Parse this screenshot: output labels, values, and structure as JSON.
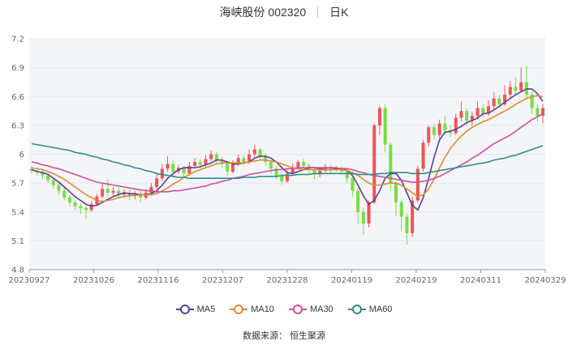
{
  "header": {
    "stock": "海峡股份 002320",
    "period": "日K"
  },
  "source": "数据来源：  恒生聚源",
  "chart_data": {
    "type": "candlestick",
    "ylim": [
      4.8,
      7.2
    ],
    "yticks": [
      "7.2",
      "6.9",
      "6.6",
      "6.3",
      "6",
      "5.7",
      "5.4",
      "5.1",
      "4.8"
    ],
    "xticks": [
      "20230927",
      "20231026",
      "20231116",
      "20231207",
      "20231228",
      "20240119",
      "20240219",
      "20240311",
      "20240329"
    ],
    "grid": "horizontal",
    "legend_position": "bottom-center",
    "colors": {
      "up": "#ee5555",
      "down": "#77dd44",
      "MA5": "#5b3f98",
      "MA10": "#dd8a2e",
      "MA30": "#cc4f9a",
      "MA60": "#2f8c88"
    },
    "candles": [
      [
        5.85,
        5.83,
        5.88,
        5.8
      ],
      [
        5.83,
        5.82,
        5.86,
        5.78
      ],
      [
        5.82,
        5.78,
        5.85,
        5.74
      ],
      [
        5.78,
        5.73,
        5.8,
        5.7
      ],
      [
        5.73,
        5.68,
        5.76,
        5.64
      ],
      [
        5.68,
        5.62,
        5.7,
        5.58
      ],
      [
        5.62,
        5.55,
        5.66,
        5.52
      ],
      [
        5.55,
        5.5,
        5.58,
        5.46
      ],
      [
        5.5,
        5.46,
        5.53,
        5.42
      ],
      [
        5.46,
        5.44,
        5.49,
        5.38
      ],
      [
        5.44,
        5.42,
        5.47,
        5.33
      ],
      [
        5.42,
        5.48,
        5.51,
        5.4
      ],
      [
        5.48,
        5.56,
        5.59,
        5.46
      ],
      [
        5.56,
        5.64,
        5.7,
        5.54
      ],
      [
        5.64,
        5.6,
        5.74,
        5.56
      ],
      [
        5.6,
        5.62,
        5.66,
        5.57
      ],
      [
        5.62,
        5.58,
        5.65,
        5.54
      ],
      [
        5.58,
        5.6,
        5.64,
        5.55
      ],
      [
        5.6,
        5.57,
        5.63,
        5.52
      ],
      [
        5.57,
        5.59,
        5.62,
        5.53
      ],
      [
        5.59,
        5.55,
        5.62,
        5.5
      ],
      [
        5.55,
        5.6,
        5.64,
        5.53
      ],
      [
        5.6,
        5.66,
        5.7,
        5.58
      ],
      [
        5.66,
        5.75,
        5.8,
        5.64
      ],
      [
        5.75,
        5.85,
        5.9,
        5.72
      ],
      [
        5.85,
        5.9,
        5.98,
        5.82
      ],
      [
        5.9,
        5.82,
        5.94,
        5.78
      ],
      [
        5.82,
        5.86,
        5.89,
        5.8
      ],
      [
        5.86,
        5.8,
        5.88,
        5.76
      ],
      [
        5.8,
        5.88,
        5.92,
        5.78
      ],
      [
        5.88,
        5.92,
        5.96,
        5.86
      ],
      [
        5.92,
        5.89,
        5.95,
        5.85
      ],
      [
        5.89,
        5.95,
        5.99,
        5.87
      ],
      [
        5.95,
        6.0,
        6.04,
        5.93
      ],
      [
        6.0,
        5.94,
        6.02,
        5.9
      ],
      [
        5.94,
        5.9,
        5.97,
        5.86
      ],
      [
        5.9,
        5.82,
        5.93,
        5.78
      ],
      [
        5.82,
        5.9,
        5.94,
        5.8
      ],
      [
        5.9,
        5.96,
        6.0,
        5.88
      ],
      [
        5.96,
        5.92,
        5.99,
        5.89
      ],
      [
        5.92,
        6.0,
        6.05,
        5.9
      ],
      [
        6.0,
        6.05,
        6.1,
        5.97
      ],
      [
        6.05,
        5.98,
        6.07,
        5.94
      ],
      [
        5.98,
        5.92,
        6.01,
        5.88
      ],
      [
        5.92,
        5.85,
        5.94,
        5.8
      ],
      [
        5.85,
        5.78,
        5.88,
        5.74
      ],
      [
        5.78,
        5.72,
        5.82,
        5.68
      ],
      [
        5.72,
        5.8,
        5.84,
        5.7
      ],
      [
        5.8,
        5.86,
        5.9,
        5.78
      ],
      [
        5.86,
        5.92,
        5.94,
        5.84
      ],
      [
        5.92,
        5.88,
        5.95,
        5.85
      ],
      [
        5.88,
        5.84,
        5.91,
        5.8
      ],
      [
        5.84,
        5.79,
        5.86,
        5.74
      ],
      [
        5.79,
        5.83,
        5.87,
        5.76
      ],
      [
        5.83,
        5.87,
        5.9,
        5.81
      ],
      [
        5.87,
        5.84,
        5.89,
        5.79
      ],
      [
        5.84,
        5.86,
        5.88,
        5.82
      ],
      [
        5.86,
        5.82,
        5.88,
        5.8
      ],
      [
        5.82,
        5.75,
        5.84,
        5.7
      ],
      [
        5.75,
        5.62,
        5.78,
        5.56
      ],
      [
        5.62,
        5.4,
        5.65,
        5.28
      ],
      [
        5.4,
        5.28,
        5.44,
        5.16
      ],
      [
        5.28,
        5.5,
        5.52,
        5.24
      ],
      [
        5.5,
        6.3,
        6.32,
        5.48
      ],
      [
        6.3,
        6.48,
        6.5,
        6.2
      ],
      [
        6.48,
        6.1,
        6.52,
        6.02
      ],
      [
        6.1,
        5.7,
        6.12,
        5.62
      ],
      [
        5.7,
        5.5,
        5.72,
        5.36
      ],
      [
        5.5,
        5.35,
        5.53,
        5.2
      ],
      [
        5.35,
        5.18,
        5.38,
        5.06
      ],
      [
        5.18,
        5.52,
        5.56,
        5.14
      ],
      [
        5.52,
        5.85,
        5.88,
        5.5
      ],
      [
        5.85,
        6.12,
        6.15,
        5.82
      ],
      [
        6.12,
        6.28,
        6.3,
        6.08
      ],
      [
        6.28,
        6.2,
        6.32,
        6.15
      ],
      [
        6.2,
        6.32,
        6.36,
        6.16
      ],
      [
        6.32,
        6.25,
        6.4,
        6.2
      ],
      [
        6.25,
        6.22,
        6.3,
        6.18
      ],
      [
        6.22,
        6.38,
        6.42,
        6.2
      ],
      [
        6.38,
        6.45,
        6.55,
        6.34
      ],
      [
        6.45,
        6.35,
        6.48,
        6.3
      ],
      [
        6.35,
        6.4,
        6.44,
        6.3
      ],
      [
        6.4,
        6.48,
        6.55,
        6.36
      ],
      [
        6.48,
        6.42,
        6.52,
        6.38
      ],
      [
        6.42,
        6.5,
        6.56,
        6.4
      ],
      [
        6.5,
        6.58,
        6.65,
        6.46
      ],
      [
        6.58,
        6.52,
        6.62,
        6.48
      ],
      [
        6.52,
        6.62,
        6.72,
        6.5
      ],
      [
        6.62,
        6.7,
        6.76,
        6.58
      ],
      [
        6.7,
        6.66,
        6.8,
        6.62
      ],
      [
        6.66,
        6.75,
        6.9,
        6.64
      ],
      [
        6.75,
        6.62,
        6.92,
        6.58
      ],
      [
        6.62,
        6.48,
        6.66,
        6.42
      ],
      [
        6.48,
        6.4,
        6.52,
        6.34
      ],
      [
        6.4,
        6.48,
        6.52,
        6.32
      ]
    ],
    "series": [
      {
        "name": "MA5",
        "values": [
          5.84,
          5.82,
          5.81,
          5.79,
          5.75,
          5.71,
          5.66,
          5.61,
          5.56,
          5.52,
          5.48,
          5.46,
          5.47,
          5.5,
          5.53,
          5.56,
          5.58,
          5.6,
          5.59,
          5.59,
          5.58,
          5.58,
          5.59,
          5.62,
          5.68,
          5.75,
          5.8,
          5.84,
          5.86,
          5.86,
          5.86,
          5.87,
          5.89,
          5.91,
          5.94,
          5.94,
          5.92,
          5.9,
          5.9,
          5.91,
          5.92,
          5.96,
          5.98,
          5.98,
          5.96,
          5.92,
          5.86,
          5.81,
          5.8,
          5.82,
          5.84,
          5.86,
          5.86,
          5.85,
          5.84,
          5.84,
          5.85,
          5.85,
          5.83,
          5.78,
          5.68,
          5.57,
          5.48,
          5.52,
          5.62,
          5.75,
          5.8,
          5.8,
          5.73,
          5.6,
          5.47,
          5.42,
          5.55,
          5.75,
          5.97,
          6.15,
          6.23,
          6.24,
          6.26,
          6.29,
          6.33,
          6.35,
          6.38,
          6.42,
          6.43,
          6.46,
          6.5,
          6.54,
          6.58,
          6.62,
          6.65,
          6.68,
          6.68,
          6.63,
          6.55
        ]
      },
      {
        "name": "MA10",
        "values": [
          5.86,
          5.85,
          5.84,
          5.82,
          5.8,
          5.77,
          5.74,
          5.7,
          5.66,
          5.62,
          5.58,
          5.55,
          5.52,
          5.51,
          5.52,
          5.53,
          5.55,
          5.56,
          5.57,
          5.57,
          5.58,
          5.58,
          5.58,
          5.59,
          5.62,
          5.65,
          5.69,
          5.72,
          5.76,
          5.79,
          5.82,
          5.84,
          5.86,
          5.88,
          5.9,
          5.91,
          5.91,
          5.91,
          5.91,
          5.91,
          5.92,
          5.93,
          5.94,
          5.94,
          5.93,
          5.92,
          5.9,
          5.88,
          5.86,
          5.85,
          5.84,
          5.84,
          5.84,
          5.84,
          5.84,
          5.84,
          5.84,
          5.84,
          5.83,
          5.81,
          5.78,
          5.74,
          5.7,
          5.68,
          5.68,
          5.69,
          5.7,
          5.7,
          5.68,
          5.64,
          5.6,
          5.56,
          5.58,
          5.64,
          5.74,
          5.86,
          5.97,
          6.06,
          6.13,
          6.19,
          6.24,
          6.28,
          6.31,
          6.34,
          6.36,
          6.39,
          6.42,
          6.45,
          6.48,
          6.52,
          6.55,
          6.58,
          6.6,
          6.61,
          6.6
        ]
      },
      {
        "name": "MA30",
        "values": [
          5.92,
          5.91,
          5.89,
          5.88,
          5.86,
          5.85,
          5.83,
          5.81,
          5.79,
          5.77,
          5.75,
          5.73,
          5.71,
          5.7,
          5.69,
          5.68,
          5.67,
          5.66,
          5.65,
          5.64,
          5.63,
          5.62,
          5.62,
          5.61,
          5.61,
          5.61,
          5.62,
          5.62,
          5.63,
          5.64,
          5.65,
          5.66,
          5.67,
          5.69,
          5.7,
          5.72,
          5.73,
          5.75,
          5.76,
          5.77,
          5.79,
          5.8,
          5.81,
          5.82,
          5.83,
          5.84,
          5.84,
          5.85,
          5.85,
          5.86,
          5.86,
          5.86,
          5.86,
          5.86,
          5.86,
          5.86,
          5.86,
          5.85,
          5.85,
          5.84,
          5.82,
          5.81,
          5.79,
          5.78,
          5.77,
          5.76,
          5.75,
          5.74,
          5.73,
          5.72,
          5.71,
          5.71,
          5.72,
          5.73,
          5.75,
          5.77,
          5.8,
          5.83,
          5.86,
          5.89,
          5.92,
          5.96,
          5.99,
          6.03,
          6.07,
          6.11,
          6.14,
          6.17,
          6.2,
          6.24,
          6.28,
          6.32,
          6.36,
          6.39,
          6.42
        ]
      },
      {
        "name": "MA60",
        "values": [
          6.11,
          6.1,
          6.09,
          6.08,
          6.07,
          6.06,
          6.05,
          6.04,
          6.02,
          6.01,
          6.0,
          5.98,
          5.97,
          5.95,
          5.94,
          5.92,
          5.91,
          5.89,
          5.88,
          5.86,
          5.85,
          5.83,
          5.82,
          5.8,
          5.79,
          5.78,
          5.77,
          5.76,
          5.76,
          5.75,
          5.75,
          5.75,
          5.75,
          5.75,
          5.75,
          5.75,
          5.75,
          5.75,
          5.75,
          5.76,
          5.76,
          5.76,
          5.77,
          5.77,
          5.77,
          5.77,
          5.78,
          5.78,
          5.78,
          5.79,
          5.79,
          5.79,
          5.8,
          5.8,
          5.8,
          5.8,
          5.8,
          5.8,
          5.8,
          5.8,
          5.79,
          5.79,
          5.79,
          5.79,
          5.8,
          5.8,
          5.81,
          5.81,
          5.81,
          5.81,
          5.8,
          5.8,
          5.8,
          5.81,
          5.82,
          5.83,
          5.84,
          5.85,
          5.86,
          5.87,
          5.88,
          5.89,
          5.9,
          5.91,
          5.92,
          5.94,
          5.95,
          5.96,
          5.98,
          5.99,
          6.01,
          6.03,
          6.05,
          6.07,
          6.09
        ]
      }
    ]
  }
}
